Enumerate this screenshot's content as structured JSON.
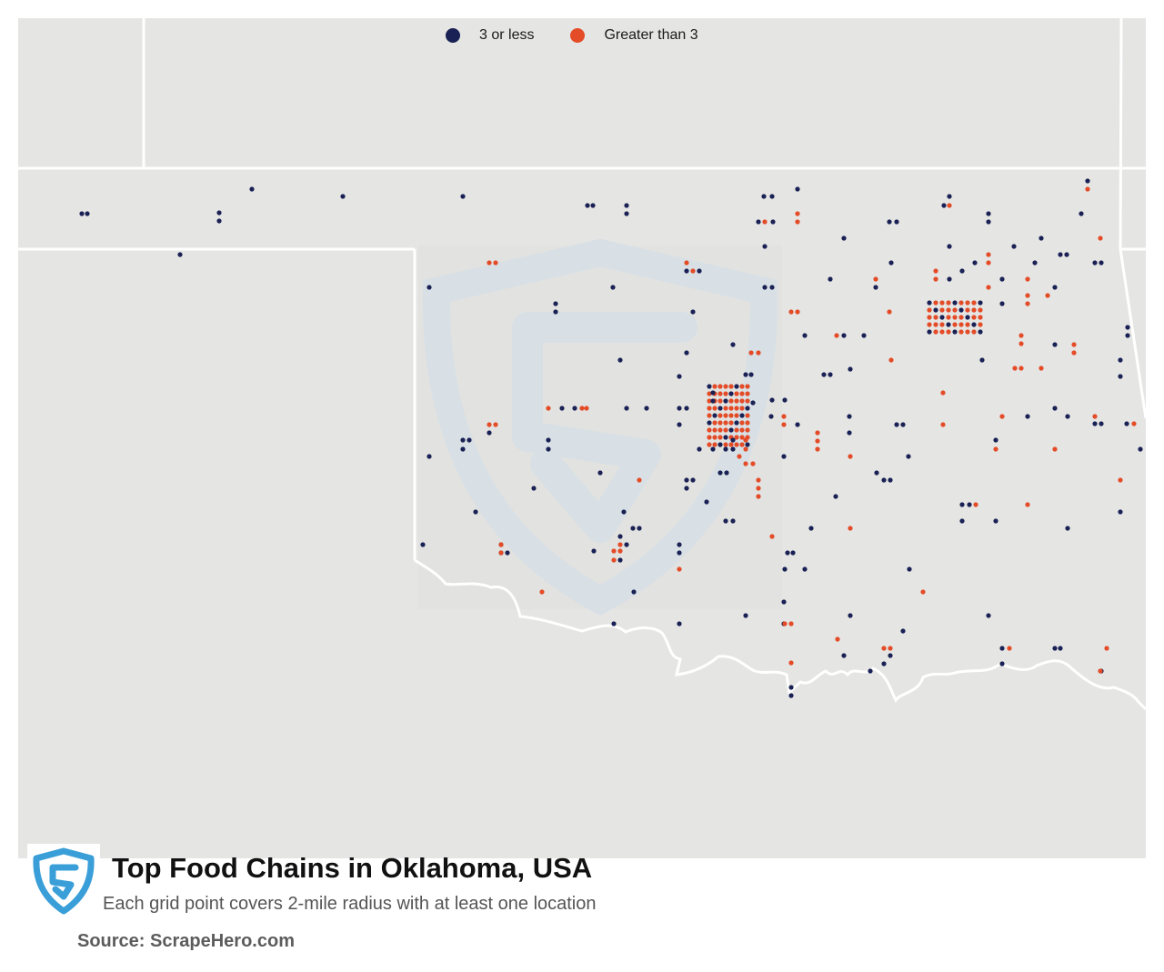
{
  "legend": {
    "items": [
      {
        "label": "3 or less",
        "color": "#1a2155"
      },
      {
        "label": "Greater than 3",
        "color": "#e44b27"
      }
    ]
  },
  "title": "Top Food Chains in Oklahoma, USA",
  "subtitle": "Each grid point covers 2-mile radius with at least one location",
  "source": "Source: ScrapeHero.com",
  "colors": {
    "map_background": "#e5e5e3",
    "state_border": "#ffffff",
    "low": "#1a2155",
    "high": "#e44b27",
    "watermark": "#d7e0e6",
    "logo": "#3a9fd8"
  }
}
